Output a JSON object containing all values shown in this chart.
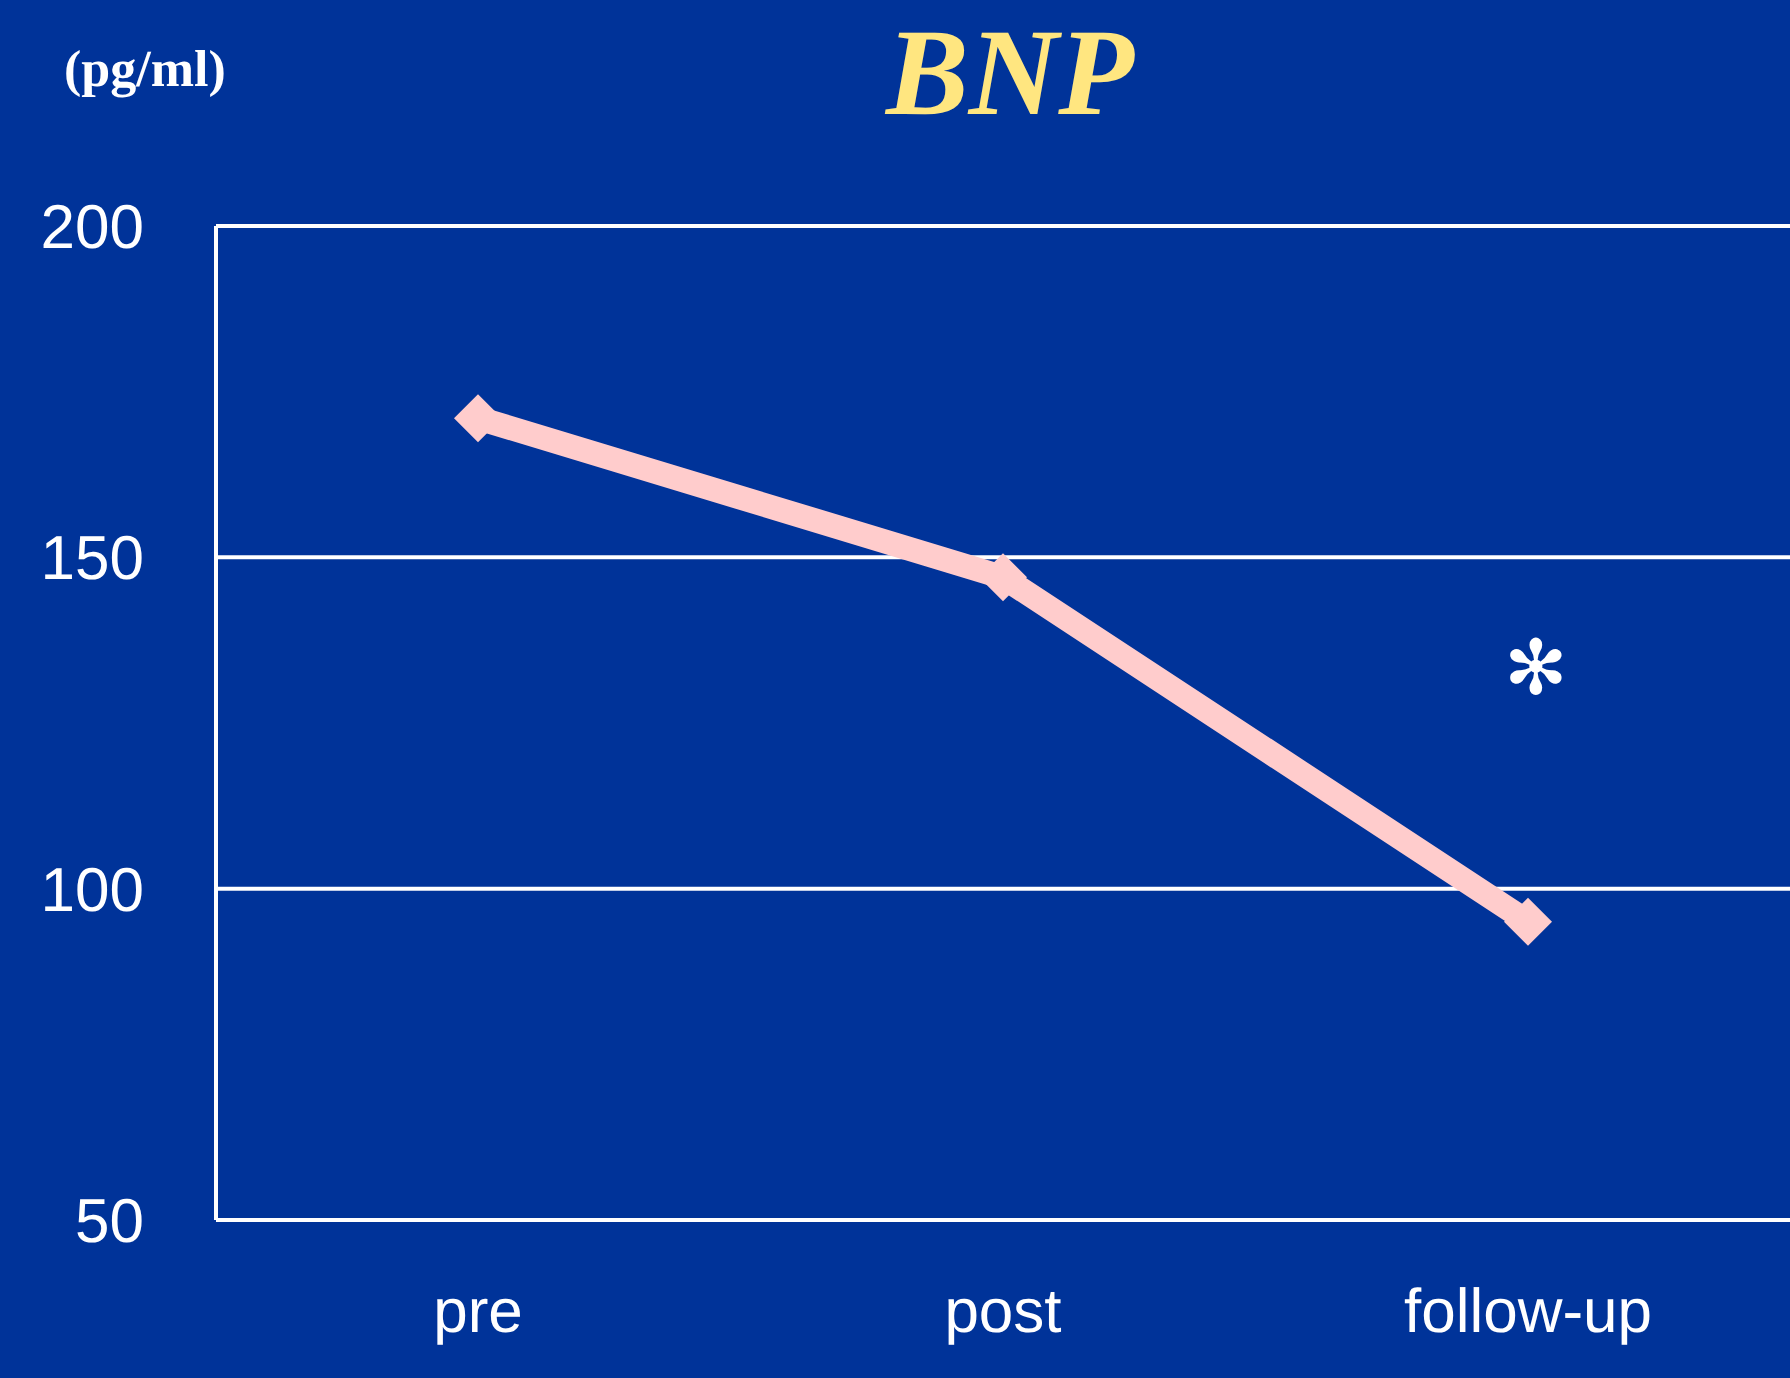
{
  "chart_data": {
    "type": "line",
    "title": "BNP",
    "ylabel": "(pg/ml)",
    "categories": [
      "pre",
      "post",
      "follow-up"
    ],
    "series": [
      {
        "color": "#ffcccc",
        "values": [
          171,
          147,
          95
        ]
      }
    ],
    "ylim": [
      50,
      200
    ],
    "yticks": [
      50,
      100,
      150,
      200
    ],
    "grid": "y",
    "legend": false,
    "marker": "diamond",
    "line_style": "solid",
    "annotations": [
      "✻"
    ]
  }
}
